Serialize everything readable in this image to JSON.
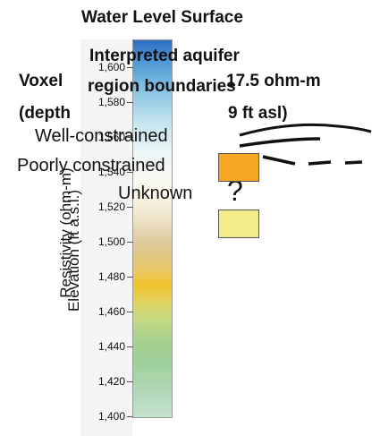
{
  "titles": {
    "water_level": "Water Level Surface",
    "voxel_line1": "Voxel",
    "voxel_line2": "(depth",
    "voxel_right1": "17.5 ohm-m",
    "voxel_right2": "9 ft asl)",
    "aquifer_line1": "Interpreted aquifer",
    "aquifer_line2": "region boundaries"
  },
  "legend": {
    "well": "Well-constrained",
    "poorly": "Poorly constrained",
    "unknown": "Unknown",
    "unknown_symbol": "?"
  },
  "axes": {
    "elevation_label": "Elevation (ft a.s.l.)",
    "resistivity_label": "Resistivity (ohm-m)",
    "ticks": [
      "1,600",
      "1,580",
      "1,560",
      "1,540",
      "1,520",
      "1,500",
      "1,480",
      "1,460",
      "1,440",
      "1,420",
      "1,400"
    ]
  },
  "colors": {
    "poorly_swatch": "#f5a623",
    "unknown_swatch": "#f3ec8a",
    "line": "#111111"
  }
}
